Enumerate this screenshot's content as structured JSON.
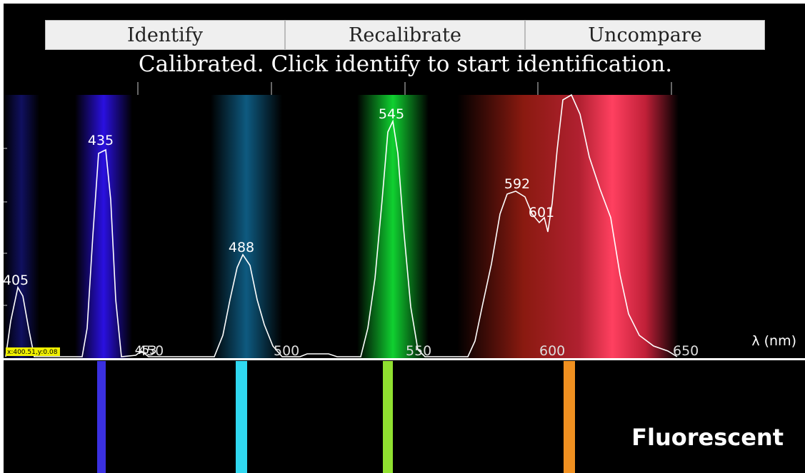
{
  "buttons": [
    "Identify",
    "Recalibrate",
    "Uncompare"
  ],
  "status": "Calibrated. Click identify to start identification.",
  "axis": {
    "ticks": [
      "450",
      "500",
      "550",
      "600",
      "650"
    ],
    "label": "λ (nm)"
  },
  "peaks": [
    "405",
    "435",
    "453",
    "488",
    "545",
    "592",
    "601"
  ],
  "cursor": "x:400.51,y:0.08",
  "reference": "Fluorescent"
}
